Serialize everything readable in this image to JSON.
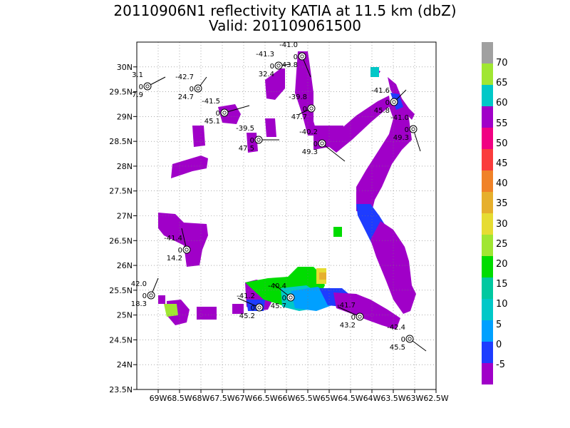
{
  "title": {
    "line1": "20110906N1 reflectivity KATIA at 11.5 km (dbZ)",
    "line2": "Valid: 201109061500"
  },
  "map": {
    "lon_range": [
      -69.5,
      -62.5
    ],
    "lat_range": [
      23.5,
      30.5
    ],
    "x_ticks": [
      "69W",
      "68.5W",
      "68W",
      "67.5W",
      "67W",
      "66.5W",
      "66W",
      "65.5W",
      "65W",
      "64.5W",
      "64W",
      "63.5W",
      "63W",
      "62.5W"
    ],
    "y_ticks": [
      "23.5N",
      "24N",
      "24.5N",
      "25N",
      "25.5N",
      "26N",
      "26.5N",
      "27N",
      "27.5N",
      "28N",
      "28.5N",
      "29N",
      "29.5N",
      "30N"
    ],
    "grid": "dotted",
    "colors": {
      "purple": "#a000c8",
      "blue": "#1e3cff",
      "lightblue": "#00a0ff",
      "cyan": "#00c8c8",
      "green": "#00dc00",
      "ltgreen": "#a0e632",
      "yellow": "#e6dc32",
      "orange": "#e6af2d",
      "frame": "#000000"
    }
  },
  "colorbar": {
    "levels": [
      "70",
      "65",
      "60",
      "55",
      "50",
      "45",
      "40",
      "35",
      "30",
      "25",
      "20",
      "15",
      "10",
      "5",
      "0",
      "-5"
    ],
    "colors": [
      "#a0a0a0",
      "#a0e632",
      "#00c8c8",
      "#a000c8",
      "#f00082",
      "#fa3c3c",
      "#f08228",
      "#e6af2d",
      "#e6dc32",
      "#a0e632",
      "#00dc00",
      "#00c8a0",
      "#00c8c8",
      "#00a0ff",
      "#1e3cff",
      "#a000c8"
    ]
  },
  "stations": [
    {
      "top": "3.1",
      "mid": "0",
      "bot": "7.9"
    },
    {
      "top": "-42.7",
      "mid": "0",
      "bot": "24.7"
    },
    {
      "top": "-41.3",
      "mid": "0",
      "bot": "32.4"
    },
    {
      "top": "-41.0",
      "mid": "0",
      "bot": "43.8"
    },
    {
      "top": "-41.5",
      "mid": "0",
      "bot": "45.1"
    },
    {
      "top": "-39.8",
      "mid": "0",
      "bot": "47.7"
    },
    {
      "top": "-39.5",
      "mid": "0",
      "bot": "47.5"
    },
    {
      "top": "-40.2",
      "mid": "0",
      "bot": "49.3"
    },
    {
      "top": "-41.6",
      "mid": "0",
      "bot": "45.8"
    },
    {
      "top": "-41.0",
      "mid": "0",
      "bot": "49.3"
    },
    {
      "top": "-41.4",
      "mid": "0",
      "bot": "14.2"
    },
    {
      "top": "42.0",
      "mid": "0",
      "bot": "18.3"
    },
    {
      "top": "-40.4",
      "mid": "0",
      "bot": "45.7"
    },
    {
      "top": "-41.2",
      "mid": "0",
      "bot": "45.2"
    },
    {
      "top": "-41.7",
      "mid": "0",
      "bot": "43.2"
    },
    {
      "top": "-42.4",
      "mid": "0",
      "bot": "45.5"
    }
  ]
}
